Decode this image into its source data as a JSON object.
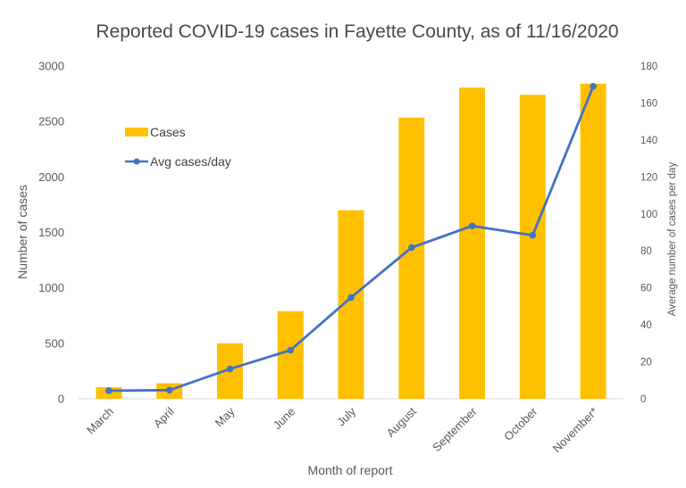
{
  "chart_data": {
    "type": "bar+line",
    "title": "Reported COVID-19 cases in Fayette County, as of 11/16/2020",
    "xlabel": "Month of report",
    "ylabel": "Number of cases",
    "y2label": "Average number of cases per day",
    "categories": [
      "March",
      "April",
      "May",
      "June",
      "July",
      "August",
      "September",
      "October",
      "November*"
    ],
    "ylim": [
      0,
      3000
    ],
    "yticks": [
      "0",
      "500",
      "1000",
      "1500",
      "2000",
      "2500",
      "3000"
    ],
    "y2lim": [
      0,
      180
    ],
    "y2ticks": [
      "0",
      "20",
      "40",
      "60",
      "80",
      "100",
      "120",
      "140",
      "160",
      "180"
    ],
    "grid": false,
    "legend_position": "upper-left inside",
    "series": [
      {
        "name": "Cases",
        "type": "bar",
        "axis": "left",
        "color": "#FFC000",
        "values": [
          105,
          140,
          500,
          790,
          1700,
          2535,
          2805,
          2740,
          2840
        ]
      },
      {
        "name": "Avg cases/day",
        "type": "line",
        "axis": "right",
        "color": "#4472C4",
        "values": [
          4.4,
          4.7,
          16.1,
          26.3,
          54.8,
          81.8,
          93.5,
          88.4,
          169.0
        ]
      }
    ]
  }
}
